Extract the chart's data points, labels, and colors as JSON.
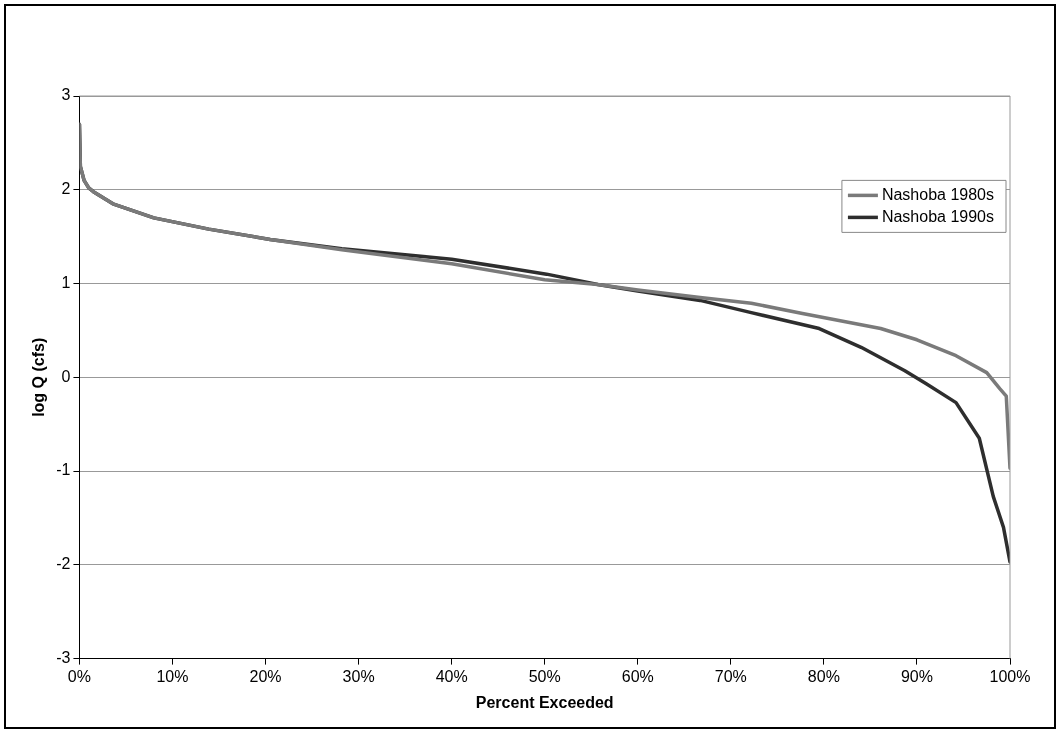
{
  "chart_data": {
    "type": "line",
    "xlabel": "Percent Exceeded",
    "ylabel": "log Q (cfs)",
    "xlim": [
      0,
      100
    ],
    "ylim": [
      -3,
      3
    ],
    "xticks": [
      {
        "value": 0,
        "label": "0%"
      },
      {
        "value": 10,
        "label": "10%"
      },
      {
        "value": 20,
        "label": "20%"
      },
      {
        "value": 30,
        "label": "30%"
      },
      {
        "value": 40,
        "label": "40%"
      },
      {
        "value": 50,
        "label": "50%"
      },
      {
        "value": 60,
        "label": "60%"
      },
      {
        "value": 70,
        "label": "70%"
      },
      {
        "value": 80,
        "label": "80%"
      },
      {
        "value": 90,
        "label": "90%"
      },
      {
        "value": 100,
        "label": "100%"
      }
    ],
    "yticks": [
      -3,
      -2,
      -1,
      0,
      1,
      2,
      3
    ],
    "grid": "y",
    "legend": "top right",
    "marker": "none",
    "line_style": "solid",
    "series": [
      {
        "name": "Nashoba 1980s",
        "color": "#7a7a7a",
        "x": [
          0,
          0.1,
          0.5,
          1,
          1.5,
          3.6,
          8,
          13.9,
          20.5,
          28.2,
          40,
          50,
          55.7,
          60,
          66.7,
          72.2,
          77.7,
          86.1,
          90,
          94.2,
          97.5,
          98.9,
          99.6,
          100
        ],
        "values": [
          2.7,
          2.25,
          2.1,
          2.02,
          1.98,
          1.85,
          1.7,
          1.58,
          1.47,
          1.36,
          1.21,
          1.04,
          0.99,
          0.93,
          0.85,
          0.79,
          0.68,
          0.52,
          0.4,
          0.23,
          0.05,
          -0.12,
          -0.2,
          -0.97
        ]
      },
      {
        "name": "Nashoba 1990s",
        "color": "#2e2e2e",
        "x": [
          0,
          0.1,
          0.5,
          1,
          1.5,
          3.6,
          8,
          13.9,
          20.5,
          28.2,
          40,
          50.2,
          55.7,
          60,
          66.7,
          72.2,
          79.5,
          84,
          88.7,
          91,
          94.2,
          96.7,
          98.2,
          99.3,
          100
        ],
        "values": [
          2.7,
          2.25,
          2.1,
          2.02,
          1.98,
          1.85,
          1.7,
          1.58,
          1.47,
          1.37,
          1.26,
          1.1,
          0.99,
          0.92,
          0.82,
          0.69,
          0.52,
          0.32,
          0.07,
          -0.07,
          -0.27,
          -0.65,
          -1.27,
          -1.6,
          -1.97
        ]
      }
    ]
  }
}
